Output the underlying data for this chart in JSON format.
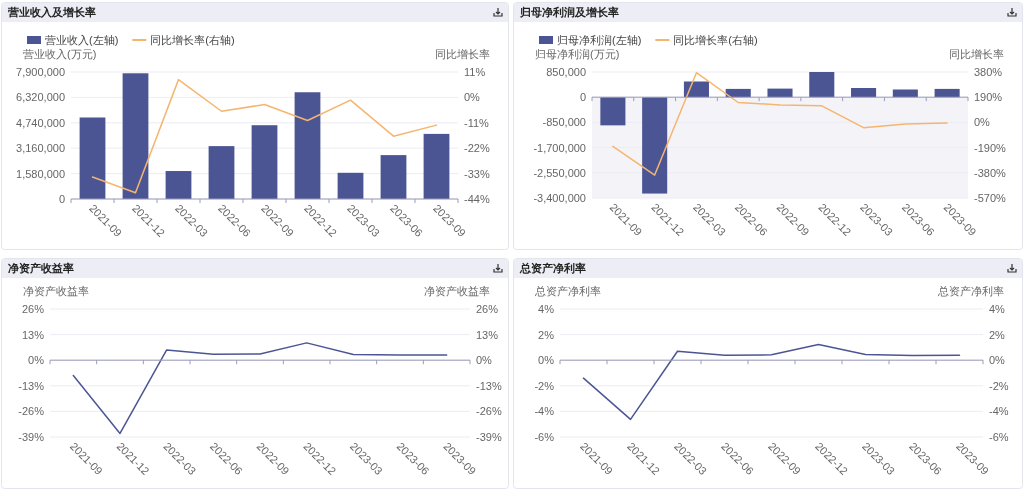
{
  "chart_data": [
    {
      "type": "bar",
      "title": "营业收入及增长率",
      "ylabel": "营业收入(万元)",
      "y2label": "同比增长率",
      "legend": "top left",
      "grid": "y",
      "categories": [
        "2021-09",
        "2021-12",
        "2022-03",
        "2022-06",
        "2022-09",
        "2022-12",
        "2023-03",
        "2023-06",
        "2023-09"
      ],
      "ylim": [
        0,
        7900000
      ],
      "yticks": [
        0,
        {
          "value": 1580000,
          "label": "1,580,000"
        },
        {
          "value": 3160000,
          "label": "3,160,000"
        },
        {
          "value": 4740000,
          "label": "4,740,000"
        },
        {
          "value": 6320000,
          "label": "6,320,000"
        },
        {
          "value": 7900000,
          "label": "7,900,000"
        }
      ],
      "y2lim": [
        -44,
        11
      ],
      "y2ticks": [
        {
          "value": -44,
          "label": "-44%"
        },
        {
          "value": -33,
          "label": "-33%"
        },
        {
          "value": -22,
          "label": "-22%"
        },
        {
          "value": -11,
          "label": "-11%"
        },
        {
          "value": 0,
          "label": "0%"
        },
        {
          "value": 11,
          "label": "11%"
        }
      ],
      "series": [
        {
          "name": "营业收入(左轴)",
          "type": "bar",
          "color": "#4c5594",
          "values": [
            5070000,
            7820000,
            1740000,
            3290000,
            4590000,
            6640000,
            1630000,
            2730000,
            4050000
          ]
        },
        {
          "name": "同比增长率(右轴)",
          "type": "line",
          "axis": "y2",
          "color": "#f5b56f",
          "values": [
            -34.5,
            -41.3,
            7.7,
            -6.0,
            -3.1,
            -10.0,
            -1.2,
            -16.8,
            -12.0
          ]
        }
      ]
    },
    {
      "type": "bar",
      "title": "归母净利润及增长率",
      "ylabel": "归母净利润(万元)",
      "y2label": "同比增长率",
      "legend": "top left",
      "grid": "y",
      "categories": [
        "2021-09",
        "2021-12",
        "2022-03",
        "2022-06",
        "2022-09",
        "2022-12",
        "2023-03",
        "2023-06",
        "2023-09"
      ],
      "ylim": [
        -3400000,
        850000
      ],
      "yticks": [
        {
          "value": -3400000,
          "label": "-3,400,000"
        },
        {
          "value": -2550000,
          "label": "-2,550,000"
        },
        {
          "value": -1700000,
          "label": "-1,700,000"
        },
        {
          "value": -850000,
          "label": "-850,000"
        },
        0,
        {
          "value": 850000,
          "label": "850,000"
        }
      ],
      "y2lim": [
        -570,
        380
      ],
      "y2ticks": [
        {
          "value": -570,
          "label": "-570%"
        },
        {
          "value": -380,
          "label": "-380%"
        },
        {
          "value": -190,
          "label": "-190%"
        },
        {
          "value": 0,
          "label": "0%"
        },
        {
          "value": 190,
          "label": "190%"
        },
        {
          "value": 380,
          "label": "380%"
        }
      ],
      "bands": [
        {
          "axis": "y",
          "from": -3400000,
          "to": 0,
          "color": "#f4f4f8"
        }
      ],
      "series": [
        {
          "name": "归母净利润(左轴)",
          "type": "bar",
          "color": "#4c5594",
          "values": [
            -950000,
            -3250000,
            530000,
            280000,
            290000,
            850000,
            310000,
            260000,
            280000
          ]
        },
        {
          "name": "同比增长率(右轴)",
          "type": "line",
          "axis": "y2",
          "color": "#f5b56f",
          "values": [
            -180,
            -397,
            375,
            150,
            132,
            125,
            -40,
            -12,
            -5
          ]
        }
      ]
    },
    {
      "type": "line",
      "title": "净资产收益率",
      "ylabel": "净资产收益率",
      "y2label": "净资产收益率",
      "grid": "y",
      "categories": [
        "2021-09",
        "2021-12",
        "2022-03",
        "2022-06",
        "2022-09",
        "2022-12",
        "2023-03",
        "2023-06",
        "2023-09"
      ],
      "ylim": [
        -39,
        26
      ],
      "yticks": [
        {
          "value": -39,
          "label": "-39%"
        },
        {
          "value": -26,
          "label": "-26%"
        },
        {
          "value": -13,
          "label": "-13%"
        },
        {
          "value": 0,
          "label": "0%"
        },
        {
          "value": 13,
          "label": "13%"
        },
        {
          "value": 26,
          "label": "26%"
        }
      ],
      "y2lim": [
        -39,
        26
      ],
      "y2ticks": [
        {
          "value": -39,
          "label": "-39%"
        },
        {
          "value": -26,
          "label": "-26%"
        },
        {
          "value": -13,
          "label": "-13%"
        },
        {
          "value": 0,
          "label": "0%"
        },
        {
          "value": 13,
          "label": "13%"
        },
        {
          "value": 26,
          "label": "26%"
        }
      ],
      "series": [
        {
          "color": "#4c5594",
          "values": [
            -7.8,
            -37.2,
            5.2,
            3.0,
            3.2,
            8.8,
            2.9,
            2.7,
            2.7
          ]
        }
      ]
    },
    {
      "type": "line",
      "title": "总资产净利率",
      "ylabel": "总资产净利率",
      "y2label": "总资产净利率",
      "grid": "y",
      "categories": [
        "2021-09",
        "2021-12",
        "2022-03",
        "2022-06",
        "2022-09",
        "2022-12",
        "2023-03",
        "2023-06",
        "2023-09"
      ],
      "ylim": [
        -6,
        4
      ],
      "yticks": [
        {
          "value": -6,
          "label": "-6%"
        },
        {
          "value": -4,
          "label": "-4%"
        },
        {
          "value": -2,
          "label": "-2%"
        },
        {
          "value": 0,
          "label": "0%"
        },
        {
          "value": 2,
          "label": "2%"
        },
        {
          "value": 4,
          "label": "4%"
        }
      ],
      "y2lim": [
        -6,
        4
      ],
      "y2ticks": [
        {
          "value": -6,
          "label": "-6%"
        },
        {
          "value": -4,
          "label": "-4%"
        },
        {
          "value": -2,
          "label": "-2%"
        },
        {
          "value": 0,
          "label": "0%"
        },
        {
          "value": 2,
          "label": "2%"
        },
        {
          "value": 4,
          "label": "4%"
        }
      ],
      "series": [
        {
          "color": "#4c5594",
          "values": [
            -1.4,
            -4.62,
            0.7,
            0.39,
            0.42,
            1.22,
            0.44,
            0.36,
            0.39
          ]
        }
      ]
    }
  ]
}
